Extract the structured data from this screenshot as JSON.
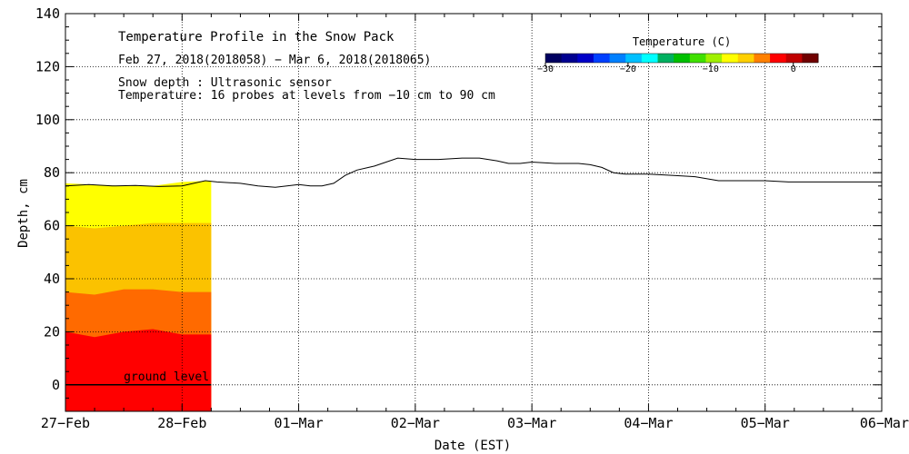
{
  "chart_data": {
    "type": "area",
    "title": "Temperature Profile in the Snow Pack",
    "subtitle": "Feb 27, 2018(2018058) − Mar  6, 2018(2018065)",
    "notes": [
      "Snow depth : Ultrasonic sensor",
      "Temperature: 16 probes at levels from −10 cm to 90 cm"
    ],
    "xlabel": "Date (EST)",
    "ylabel": "Depth, cm",
    "x_ticks": [
      "27−Feb",
      "28−Feb",
      "01−Mar",
      "02−Mar",
      "03−Mar",
      "04−Mar",
      "05−Mar",
      "06−Mar"
    ],
    "xlim_days": [
      0,
      7
    ],
    "ylim": [
      -10,
      140
    ],
    "y_ticks": [
      0,
      20,
      40,
      60,
      80,
      100,
      120,
      140
    ],
    "grid": true,
    "ground_level_label": "ground level",
    "colorbar": {
      "title": "Temperature (C)",
      "range": [
        -30,
        3
      ],
      "ticks": [
        -30,
        -20,
        -10,
        0
      ],
      "tick_labels": [
        "−30",
        "−20",
        "−10",
        "0"
      ],
      "colors": [
        "#000060",
        "#000090",
        "#0000c8",
        "#0040ff",
        "#0080ff",
        "#00c0ff",
        "#00ffff",
        "#00b060",
        "#00c000",
        "#40e000",
        "#a0f000",
        "#ffff00",
        "#ffd000",
        "#ff8000",
        "#ff0000",
        "#c00000",
        "#700000"
      ]
    },
    "snow_depth": {
      "x": [
        0,
        0.2,
        0.4,
        0.6,
        0.8,
        1.0,
        1.1,
        1.2,
        1.3,
        1.5,
        1.65,
        1.8,
        2.0,
        2.1,
        2.2,
        2.3,
        2.4,
        2.5,
        2.6,
        2.65,
        2.75,
        2.85,
        3.0,
        3.2,
        3.4,
        3.55,
        3.7,
        3.8,
        3.9,
        4.0,
        4.2,
        4.4,
        4.5,
        4.6,
        4.7,
        4.8,
        5.0,
        5.2,
        5.4,
        5.6,
        5.8,
        6.0,
        6.2,
        6.4,
        6.6,
        6.8,
        7.0
      ],
      "y": [
        75,
        75.5,
        75,
        75.2,
        74.8,
        75,
        76,
        77,
        76.5,
        76,
        75,
        74.5,
        75.5,
        75,
        75,
        76,
        79,
        81,
        82,
        82.5,
        84,
        85.5,
        85,
        85,
        85.5,
        85.5,
        84.5,
        83.5,
        83.5,
        84,
        83.5,
        83.5,
        83,
        82,
        80,
        79.5,
        79.5,
        79,
        78.5,
        77,
        77,
        77,
        76.5,
        76.5,
        76.5,
        76.5,
        76.5
      ]
    },
    "temperature_layers": {
      "x": [
        0,
        0.25,
        0.5,
        0.75,
        1.0,
        1.25
      ],
      "layers": [
        {
          "color": "#ff0000",
          "top": [
            20,
            18,
            20,
            21,
            19,
            19
          ]
        },
        {
          "color": "#ff6a00",
          "top": [
            35,
            34,
            36,
            36,
            35,
            35
          ]
        },
        {
          "color": "#fbc200",
          "top": [
            60,
            59,
            60,
            61,
            61,
            61
          ]
        },
        {
          "color": "#ffff00",
          "top": [
            76,
            75.5,
            75,
            75,
            76.5,
            77
          ]
        }
      ]
    }
  }
}
